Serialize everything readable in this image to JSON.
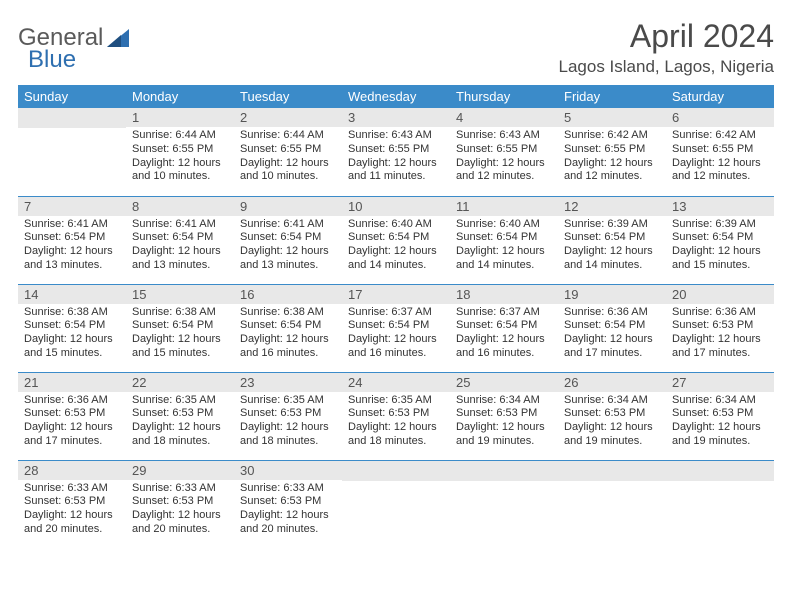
{
  "brand": {
    "name_part1": "General",
    "name_part2": "Blue"
  },
  "title": "April 2024",
  "location": "Lagos Island, Lagos, Nigeria",
  "colors": {
    "header_bg": "#3b8bc9",
    "header_text": "#ffffff",
    "daynum_bg": "#e8e8e8",
    "border": "#3b8bc9",
    "text": "#333333",
    "logo_gray": "#5a5a5a",
    "logo_blue": "#2e6fb0"
  },
  "weekdays": [
    "Sunday",
    "Monday",
    "Tuesday",
    "Wednesday",
    "Thursday",
    "Friday",
    "Saturday"
  ],
  "grid": [
    [
      {
        "day": "",
        "lines": [
          "",
          "",
          "",
          ""
        ]
      },
      {
        "day": "1",
        "lines": [
          "Sunrise: 6:44 AM",
          "Sunset: 6:55 PM",
          "Daylight: 12 hours",
          "and 10 minutes."
        ]
      },
      {
        "day": "2",
        "lines": [
          "Sunrise: 6:44 AM",
          "Sunset: 6:55 PM",
          "Daylight: 12 hours",
          "and 10 minutes."
        ]
      },
      {
        "day": "3",
        "lines": [
          "Sunrise: 6:43 AM",
          "Sunset: 6:55 PM",
          "Daylight: 12 hours",
          "and 11 minutes."
        ]
      },
      {
        "day": "4",
        "lines": [
          "Sunrise: 6:43 AM",
          "Sunset: 6:55 PM",
          "Daylight: 12 hours",
          "and 12 minutes."
        ]
      },
      {
        "day": "5",
        "lines": [
          "Sunrise: 6:42 AM",
          "Sunset: 6:55 PM",
          "Daylight: 12 hours",
          "and 12 minutes."
        ]
      },
      {
        "day": "6",
        "lines": [
          "Sunrise: 6:42 AM",
          "Sunset: 6:55 PM",
          "Daylight: 12 hours",
          "and 12 minutes."
        ]
      }
    ],
    [
      {
        "day": "7",
        "lines": [
          "Sunrise: 6:41 AM",
          "Sunset: 6:54 PM",
          "Daylight: 12 hours",
          "and 13 minutes."
        ]
      },
      {
        "day": "8",
        "lines": [
          "Sunrise: 6:41 AM",
          "Sunset: 6:54 PM",
          "Daylight: 12 hours",
          "and 13 minutes."
        ]
      },
      {
        "day": "9",
        "lines": [
          "Sunrise: 6:41 AM",
          "Sunset: 6:54 PM",
          "Daylight: 12 hours",
          "and 13 minutes."
        ]
      },
      {
        "day": "10",
        "lines": [
          "Sunrise: 6:40 AM",
          "Sunset: 6:54 PM",
          "Daylight: 12 hours",
          "and 14 minutes."
        ]
      },
      {
        "day": "11",
        "lines": [
          "Sunrise: 6:40 AM",
          "Sunset: 6:54 PM",
          "Daylight: 12 hours",
          "and 14 minutes."
        ]
      },
      {
        "day": "12",
        "lines": [
          "Sunrise: 6:39 AM",
          "Sunset: 6:54 PM",
          "Daylight: 12 hours",
          "and 14 minutes."
        ]
      },
      {
        "day": "13",
        "lines": [
          "Sunrise: 6:39 AM",
          "Sunset: 6:54 PM",
          "Daylight: 12 hours",
          "and 15 minutes."
        ]
      }
    ],
    [
      {
        "day": "14",
        "lines": [
          "Sunrise: 6:38 AM",
          "Sunset: 6:54 PM",
          "Daylight: 12 hours",
          "and 15 minutes."
        ]
      },
      {
        "day": "15",
        "lines": [
          "Sunrise: 6:38 AM",
          "Sunset: 6:54 PM",
          "Daylight: 12 hours",
          "and 15 minutes."
        ]
      },
      {
        "day": "16",
        "lines": [
          "Sunrise: 6:38 AM",
          "Sunset: 6:54 PM",
          "Daylight: 12 hours",
          "and 16 minutes."
        ]
      },
      {
        "day": "17",
        "lines": [
          "Sunrise: 6:37 AM",
          "Sunset: 6:54 PM",
          "Daylight: 12 hours",
          "and 16 minutes."
        ]
      },
      {
        "day": "18",
        "lines": [
          "Sunrise: 6:37 AM",
          "Sunset: 6:54 PM",
          "Daylight: 12 hours",
          "and 16 minutes."
        ]
      },
      {
        "day": "19",
        "lines": [
          "Sunrise: 6:36 AM",
          "Sunset: 6:54 PM",
          "Daylight: 12 hours",
          "and 17 minutes."
        ]
      },
      {
        "day": "20",
        "lines": [
          "Sunrise: 6:36 AM",
          "Sunset: 6:53 PM",
          "Daylight: 12 hours",
          "and 17 minutes."
        ]
      }
    ],
    [
      {
        "day": "21",
        "lines": [
          "Sunrise: 6:36 AM",
          "Sunset: 6:53 PM",
          "Daylight: 12 hours",
          "and 17 minutes."
        ]
      },
      {
        "day": "22",
        "lines": [
          "Sunrise: 6:35 AM",
          "Sunset: 6:53 PM",
          "Daylight: 12 hours",
          "and 18 minutes."
        ]
      },
      {
        "day": "23",
        "lines": [
          "Sunrise: 6:35 AM",
          "Sunset: 6:53 PM",
          "Daylight: 12 hours",
          "and 18 minutes."
        ]
      },
      {
        "day": "24",
        "lines": [
          "Sunrise: 6:35 AM",
          "Sunset: 6:53 PM",
          "Daylight: 12 hours",
          "and 18 minutes."
        ]
      },
      {
        "day": "25",
        "lines": [
          "Sunrise: 6:34 AM",
          "Sunset: 6:53 PM",
          "Daylight: 12 hours",
          "and 19 minutes."
        ]
      },
      {
        "day": "26",
        "lines": [
          "Sunrise: 6:34 AM",
          "Sunset: 6:53 PM",
          "Daylight: 12 hours",
          "and 19 minutes."
        ]
      },
      {
        "day": "27",
        "lines": [
          "Sunrise: 6:34 AM",
          "Sunset: 6:53 PM",
          "Daylight: 12 hours",
          "and 19 minutes."
        ]
      }
    ],
    [
      {
        "day": "28",
        "lines": [
          "Sunrise: 6:33 AM",
          "Sunset: 6:53 PM",
          "Daylight: 12 hours",
          "and 20 minutes."
        ]
      },
      {
        "day": "29",
        "lines": [
          "Sunrise: 6:33 AM",
          "Sunset: 6:53 PM",
          "Daylight: 12 hours",
          "and 20 minutes."
        ]
      },
      {
        "day": "30",
        "lines": [
          "Sunrise: 6:33 AM",
          "Sunset: 6:53 PM",
          "Daylight: 12 hours",
          "and 20 minutes."
        ]
      },
      {
        "day": "",
        "lines": [
          "",
          "",
          "",
          ""
        ]
      },
      {
        "day": "",
        "lines": [
          "",
          "",
          "",
          ""
        ]
      },
      {
        "day": "",
        "lines": [
          "",
          "",
          "",
          ""
        ]
      },
      {
        "day": "",
        "lines": [
          "",
          "",
          "",
          ""
        ]
      }
    ]
  ]
}
